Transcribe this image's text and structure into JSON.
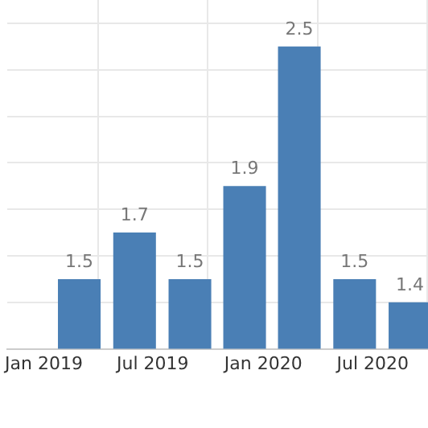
{
  "chart_data": {
    "type": "bar",
    "x": [
      "2019-03",
      "2019-06",
      "2019-09",
      "2019-12",
      "2020-03",
      "2020-06",
      "2020-09"
    ],
    "values": [
      1.5,
      1.7,
      1.5,
      1.9,
      2.5,
      1.5,
      1.4
    ],
    "color": "#4a7fb5",
    "data_labels": true,
    "xlim": [
      "2018-11",
      "2020-10"
    ],
    "xticks": [
      {
        "value": "2019-01",
        "label": "Jan 2019"
      },
      {
        "value": "2019-07",
        "label": "Jul 2019"
      },
      {
        "value": "2020-01",
        "label": "Jan 2020"
      },
      {
        "value": "2020-07",
        "label": "Jul 2020"
      }
    ],
    "ylim": [
      1.2,
      2.7
    ],
    "yticks": [
      {
        "value": 1.4,
        "label": null
      },
      {
        "value": 1.6,
        "label": null
      },
      {
        "value": 1.8,
        "label": null
      },
      {
        "value": 2.0,
        "label": null
      },
      {
        "value": 2.2,
        "label": null
      },
      {
        "value": 2.4,
        "label": null
      },
      {
        "value": 2.6,
        "label": null
      }
    ],
    "tick_labels": "x",
    "grid": true,
    "legend": false
  }
}
